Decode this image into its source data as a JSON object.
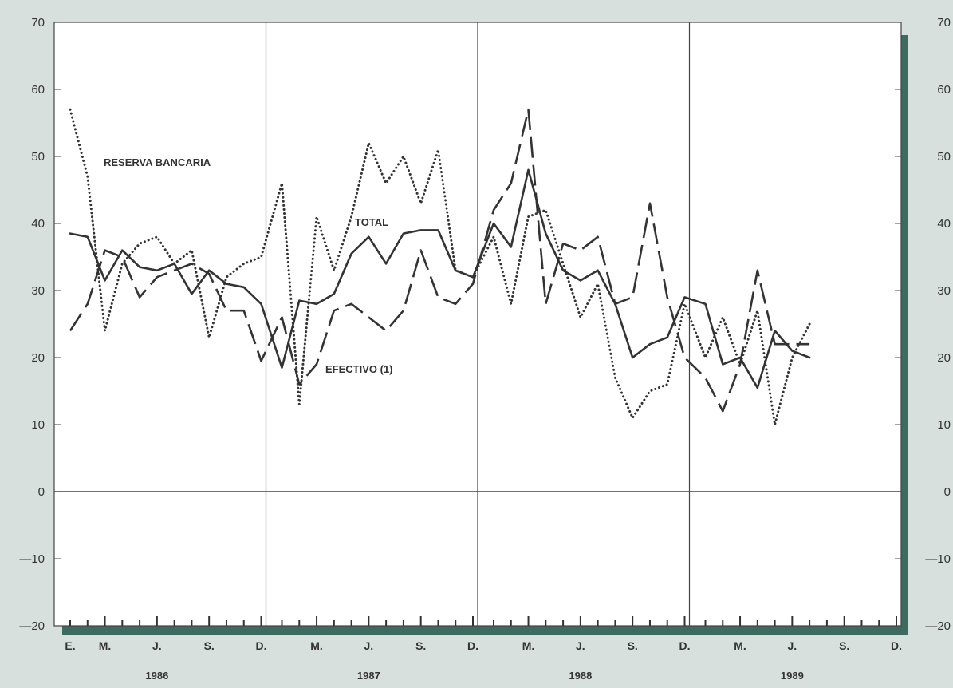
{
  "chart_data": {
    "type": "line",
    "ylim": [
      -20,
      70
    ],
    "yticks": [
      70,
      60,
      50,
      40,
      30,
      20,
      10,
      0,
      -10,
      -20
    ],
    "ytick_labels": [
      "70",
      "60",
      "50",
      "40",
      "30",
      "20",
      "10",
      "0",
      "—10",
      "—20"
    ],
    "x_start": "1986-01",
    "x_end": "1989-12",
    "month_labels": [
      "E.",
      "M.",
      "J.",
      "S.",
      "D.",
      "M.",
      "J.",
      "S.",
      "D.",
      "M.",
      "J.",
      "S.",
      "D.",
      "M.",
      "J.",
      "S.",
      "D."
    ],
    "month_label_months": [
      "1986-01",
      "1986-03",
      "1986-06",
      "1986-09",
      "1986-12",
      "1987-03",
      "1987-06",
      "1987-09",
      "1987-12",
      "1988-03",
      "1988-06",
      "1988-09",
      "1988-12",
      "1989-03",
      "1989-06",
      "1989-09",
      "1989-12"
    ],
    "year_labels": [
      "1986",
      "1987",
      "1988",
      "1989"
    ],
    "year_label_months": [
      "1986-06",
      "1987-06",
      "1988-06",
      "1989-06"
    ],
    "grid": true,
    "series": [
      {
        "name": "RESERVA BANCARIA",
        "style": "dotted",
        "x": [
          "1986-01",
          "1986-02",
          "1986-03",
          "1986-04",
          "1986-05",
          "1986-06",
          "1986-07",
          "1986-08",
          "1986-09",
          "1986-10",
          "1986-11",
          "1986-12",
          "1987-01",
          "1987-02",
          "1987-03",
          "1987-04",
          "1987-05",
          "1987-06",
          "1987-07",
          "1987-08",
          "1987-09",
          "1987-10",
          "1987-11",
          "1987-12",
          "1988-01",
          "1988-02",
          "1988-03",
          "1988-04",
          "1988-05",
          "1988-06",
          "1988-07",
          "1988-08",
          "1988-09",
          "1988-10",
          "1988-11",
          "1988-12",
          "1989-01",
          "1989-02",
          "1989-03",
          "1989-04",
          "1989-05",
          "1989-06",
          "1989-07"
        ],
        "values": [
          57,
          47,
          24,
          34,
          37,
          38,
          34,
          36,
          23,
          32,
          34,
          35,
          46,
          13,
          41,
          33,
          41,
          52,
          46,
          50,
          43,
          51,
          33,
          32,
          38,
          28,
          41,
          42,
          34,
          26,
          31,
          17,
          11,
          15,
          16,
          28,
          20,
          26,
          19,
          27,
          10,
          20,
          25
        ]
      },
      {
        "name": "TOTAL",
        "style": "solid",
        "x": [
          "1986-01",
          "1986-02",
          "1986-03",
          "1986-04",
          "1986-05",
          "1986-06",
          "1986-07",
          "1986-08",
          "1986-09",
          "1986-10",
          "1986-11",
          "1986-12",
          "1987-01",
          "1987-02",
          "1987-03",
          "1987-04",
          "1987-05",
          "1987-06",
          "1987-07",
          "1987-08",
          "1987-09",
          "1987-10",
          "1987-11",
          "1987-12",
          "1988-01",
          "1988-02",
          "1988-03",
          "1988-04",
          "1988-05",
          "1988-06",
          "1988-07",
          "1988-08",
          "1988-09",
          "1988-10",
          "1988-11",
          "1988-12",
          "1989-01",
          "1989-02",
          "1989-03",
          "1989-04",
          "1989-05",
          "1989-06",
          "1989-07"
        ],
        "values": [
          38.5,
          38,
          31.5,
          36,
          33.5,
          33,
          34,
          29.5,
          33,
          31,
          30.5,
          28,
          18.5,
          28.5,
          28,
          29.5,
          35.5,
          38,
          34,
          38.5,
          39,
          39,
          33,
          32,
          40,
          36.5,
          48,
          38.5,
          33,
          31.5,
          33,
          28,
          20,
          22,
          23,
          29,
          28,
          19,
          20,
          15.5,
          24,
          21,
          20
        ]
      },
      {
        "name": "EFECTIVO (1)",
        "style": "dashed",
        "x": [
          "1986-01",
          "1986-02",
          "1986-03",
          "1986-04",
          "1986-05",
          "1986-06",
          "1986-07",
          "1986-08",
          "1986-09",
          "1986-10",
          "1986-11",
          "1986-12",
          "1987-01",
          "1987-02",
          "1987-03",
          "1987-04",
          "1987-05",
          "1987-06",
          "1987-07",
          "1987-08",
          "1987-09",
          "1987-10",
          "1987-11",
          "1987-12",
          "1988-01",
          "1988-02",
          "1988-03",
          "1988-04",
          "1988-05",
          "1988-06",
          "1988-07",
          "1988-08",
          "1988-09",
          "1988-10",
          "1988-11",
          "1988-12",
          "1989-01",
          "1989-02",
          "1989-03",
          "1989-04",
          "1989-05",
          "1989-06",
          "1989-07"
        ],
        "values": [
          24,
          28,
          36,
          35,
          29,
          32,
          33,
          34,
          32.5,
          27,
          27,
          19.5,
          26,
          16,
          19,
          27,
          28,
          26,
          24,
          27,
          36,
          29,
          28,
          31,
          42,
          46,
          57,
          28,
          37,
          36,
          38,
          28,
          29,
          43,
          29,
          20,
          17,
          12,
          19,
          33,
          22,
          22,
          22
        ]
      }
    ]
  },
  "labels": {
    "reserva": "RESERVA BANCARIA",
    "total": "TOTAL",
    "efectivo": "EFECTIVO (1)"
  },
  "colors": {
    "background": "#d7e0dd",
    "plot_area": "#ffffff",
    "ink": "#333333",
    "shadow": "#3e6b60"
  }
}
